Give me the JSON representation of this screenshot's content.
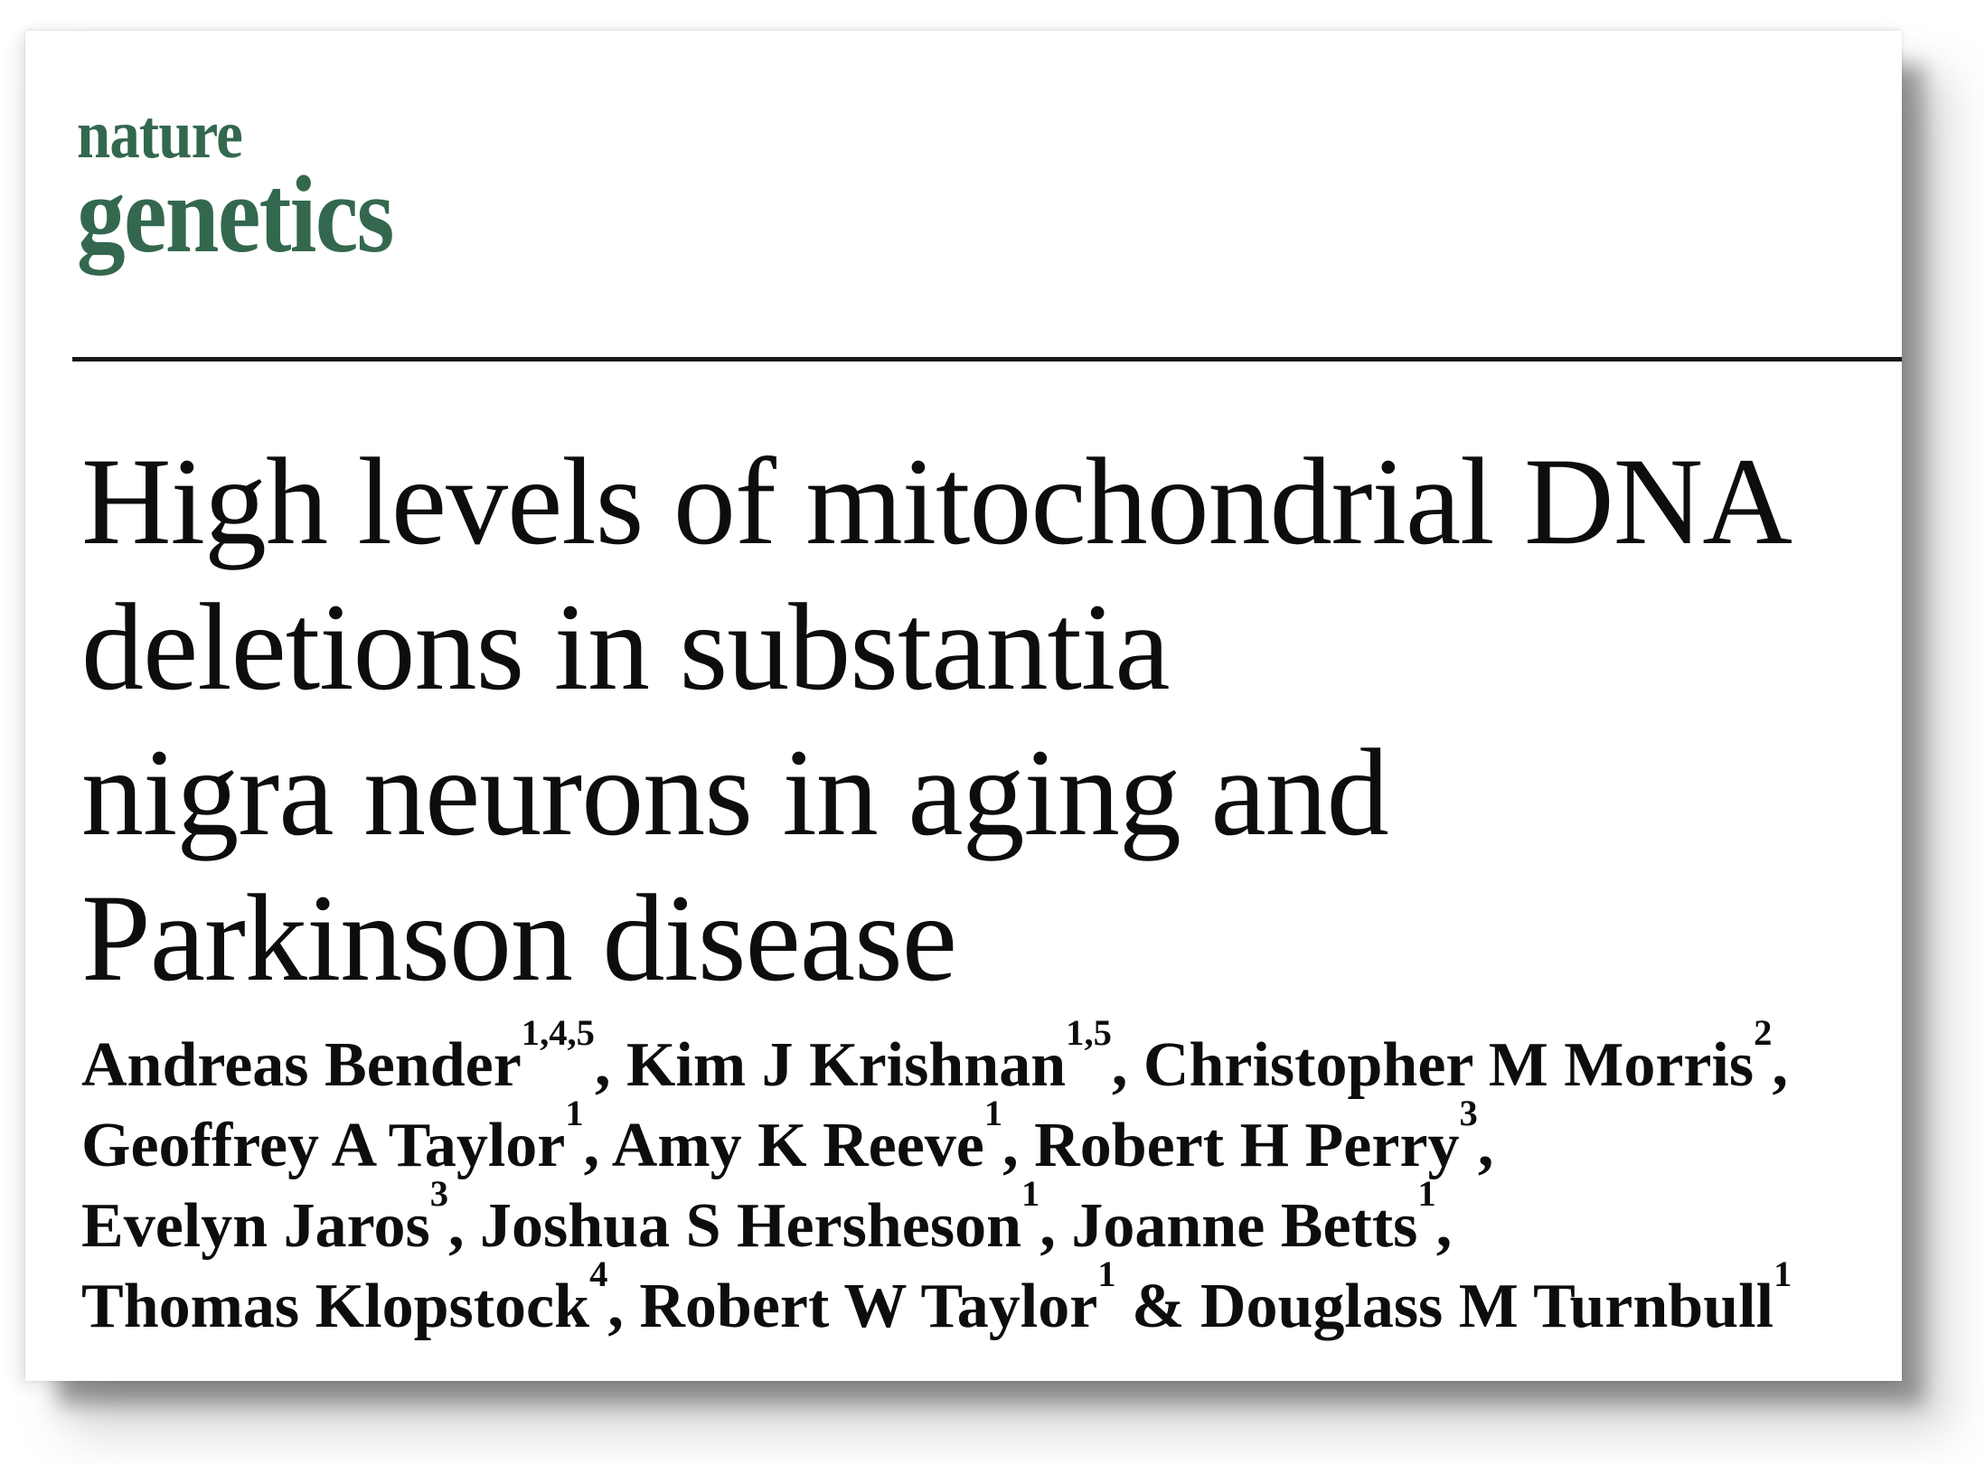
{
  "journal_logo": {
    "line1": "nature",
    "line2": "genetics"
  },
  "colors": {
    "brand_green": "#33684F",
    "text_black": "#0D0D0D",
    "rule_black": "#161616",
    "page_white": "#FFFFFF"
  },
  "title": {
    "lines": [
      "High levels of mitochondrial DNA",
      "deletions in substantia",
      "nigra neurons in aging and",
      "Parkinson disease"
    ]
  },
  "authors": {
    "lines": [
      [
        {
          "name": "Andreas Bender",
          "sup": "1,4,5"
        },
        {
          "name": ", Kim J Krishnan",
          "sup": "1,5"
        },
        {
          "name": ", Christopher M Morris",
          "sup": "2"
        },
        {
          "name": ",",
          "sup": ""
        }
      ],
      [
        {
          "name": "Geoffrey A Taylor",
          "sup": "1"
        },
        {
          "name": ", Amy K Reeve",
          "sup": "1"
        },
        {
          "name": ", Robert H Perry",
          "sup": "3"
        },
        {
          "name": ",",
          "sup": ""
        }
      ],
      [
        {
          "name": "Evelyn Jaros",
          "sup": "3"
        },
        {
          "name": ", Joshua S Hersheson",
          "sup": "1"
        },
        {
          "name": ", Joanne Betts",
          "sup": "1"
        },
        {
          "name": ",",
          "sup": ""
        }
      ],
      [
        {
          "name": "Thomas Klopstock",
          "sup": "4"
        },
        {
          "name": ", Robert W Taylor",
          "sup": "1"
        },
        {
          "name": " & Douglass M Turnbull",
          "sup": "1"
        }
      ]
    ]
  }
}
